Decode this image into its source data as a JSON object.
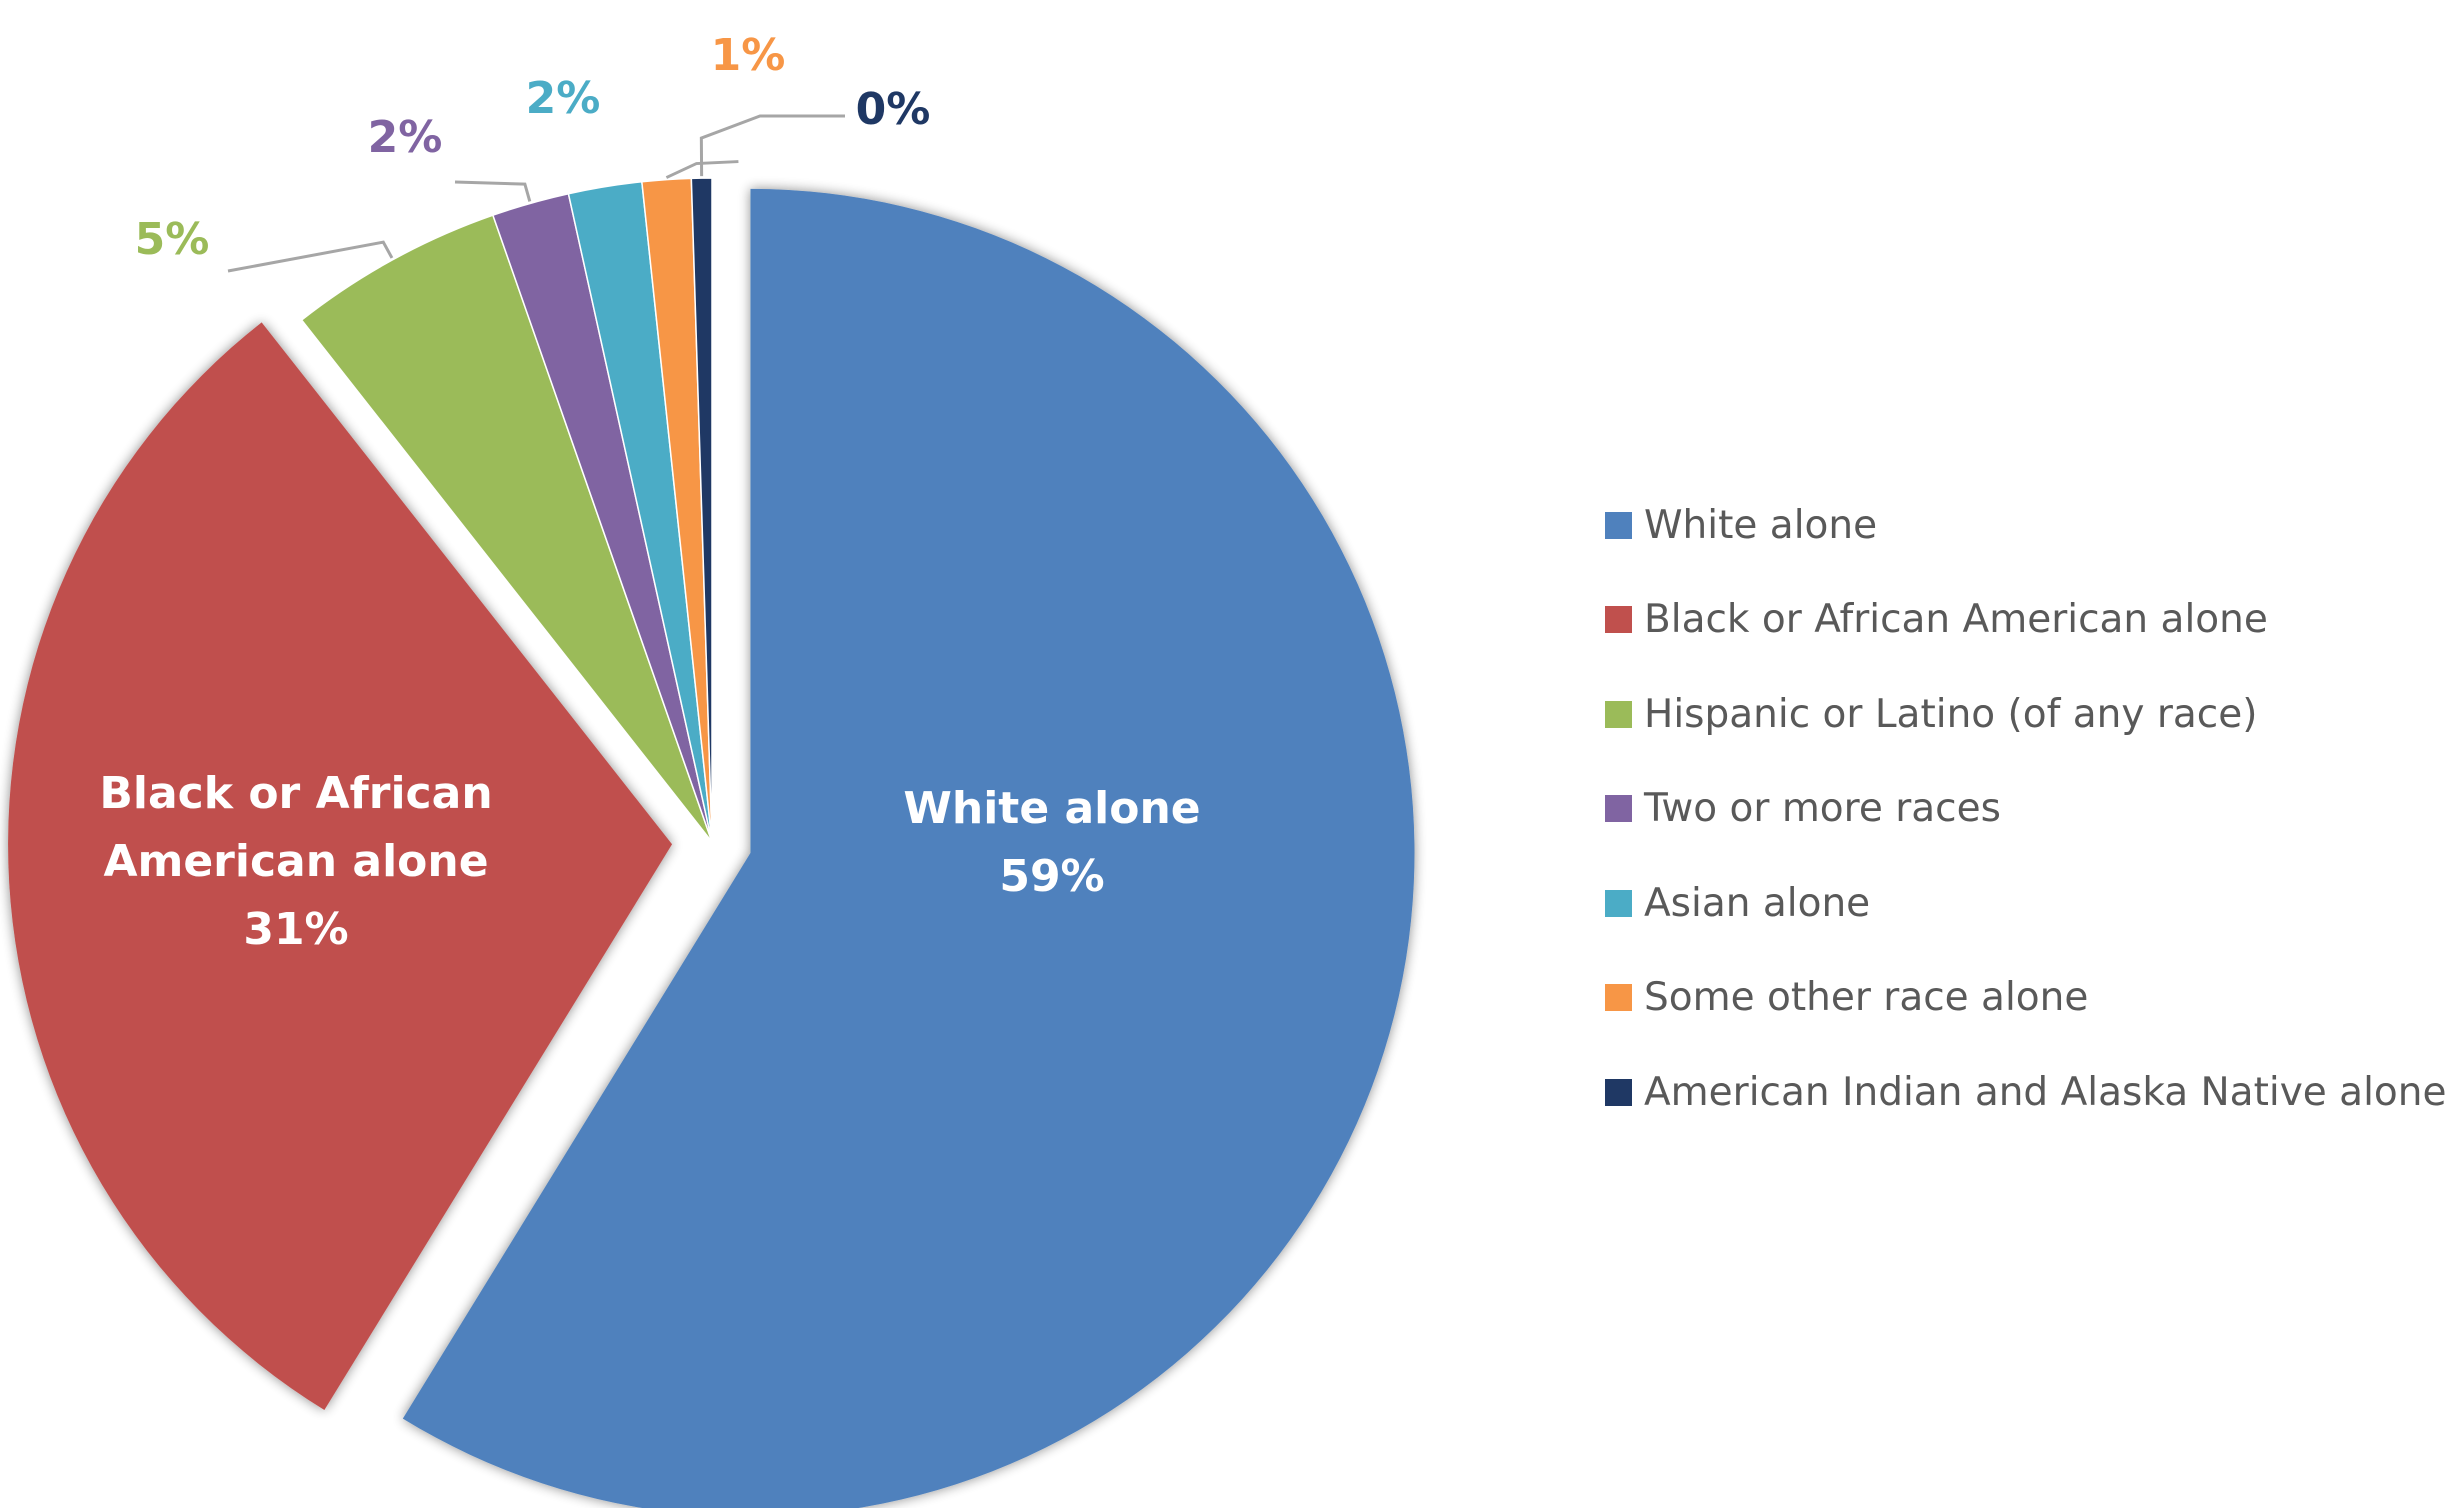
{
  "chart_data": {
    "type": "pie",
    "title": "",
    "categories": [
      "White alone",
      "Black or African American alone",
      "Hispanic or Latino (of any race)",
      "Two or more races",
      "Asian alone",
      "Some other race alone",
      "American Indian and Alaska Native alone"
    ],
    "values": [
      59.3,
      30.9,
      5.3,
      1.9,
      1.8,
      1.2,
      0.5
    ],
    "labels": [
      "59%",
      "31%",
      "5%",
      "2%",
      "2%",
      "1%",
      "0%"
    ],
    "colors": [
      "#4f81bd",
      "#c0504d",
      "#9bbb59",
      "#8064a2",
      "#4bacc6",
      "#f79646",
      "#1f3864"
    ],
    "exploded": [
      "White alone",
      "Black or African American alone"
    ],
    "legend_position": "right"
  }
}
